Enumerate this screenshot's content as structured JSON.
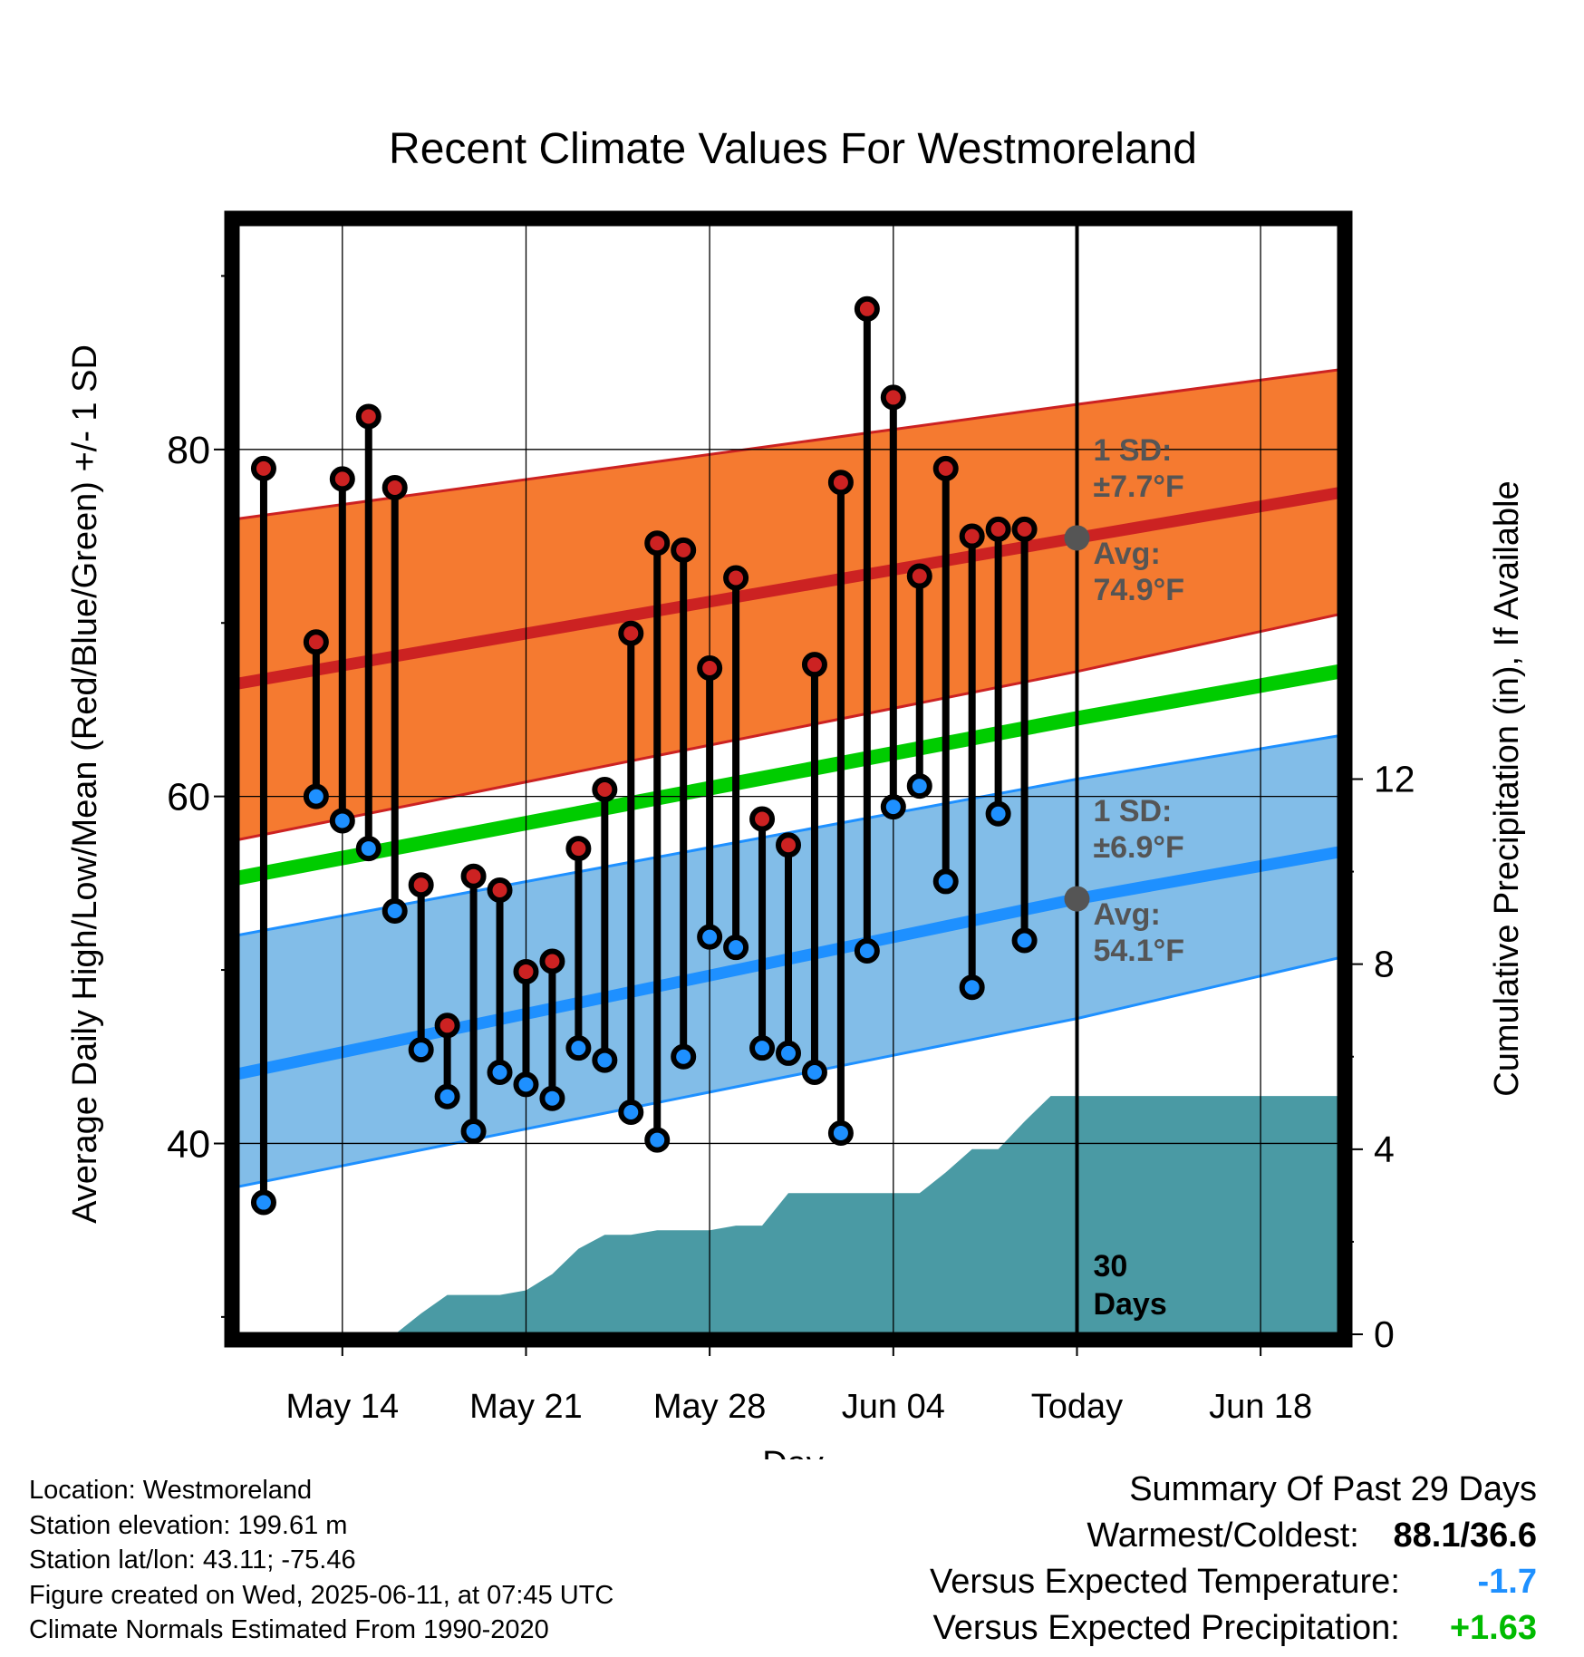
{
  "chart_data": {
    "type": "line",
    "title": "Recent Climate Values For Westmoreland",
    "xlabel": "Day",
    "ylabel": "Average Daily High/Low/Mean (Red/Blue/Green) +/- 1 SD",
    "y2label": "Cumulative Precipitation (in), If Available",
    "ylim": [
      29,
      93
    ],
    "yticks": [
      40,
      60,
      80
    ],
    "y2lim": [
      0,
      24
    ],
    "y2ticks": [
      0,
      4,
      8,
      12
    ],
    "xlim": [
      "2025-05-10",
      "2025-06-21"
    ],
    "xticks": [
      {
        "date": "2025-05-14",
        "label": "May 14"
      },
      {
        "date": "2025-05-21",
        "label": "May 21"
      },
      {
        "date": "2025-05-28",
        "label": "May 28"
      },
      {
        "date": "2025-06-04",
        "label": "Jun 04"
      },
      {
        "date": "2025-06-11",
        "label": "Today"
      },
      {
        "date": "2025-06-18",
        "label": "Jun 18"
      }
    ],
    "grid": true,
    "today": "2025-06-11",
    "normals": {
      "dates": [
        "2025-05-10",
        "2025-06-11",
        "2025-06-21"
      ],
      "high_mean": [
        66.5,
        74.9,
        77.5
      ],
      "high_plus_sd": [
        76.0,
        82.6,
        84.6
      ],
      "high_minus_sd": [
        57.5,
        67.2,
        70.5
      ],
      "low_mean": [
        44.0,
        54.1,
        56.8
      ],
      "low_plus_sd": [
        52.0,
        61.0,
        63.5
      ],
      "low_minus_sd": [
        37.5,
        47.2,
        50.7
      ],
      "daily_mean": [
        55.3,
        64.5,
        67.2
      ]
    },
    "observations": {
      "dates": [
        "2025-05-11",
        "2025-05-13",
        "2025-05-14",
        "2025-05-15",
        "2025-05-16",
        "2025-05-17",
        "2025-05-18",
        "2025-05-19",
        "2025-05-20",
        "2025-05-21",
        "2025-05-22",
        "2025-05-23",
        "2025-05-24",
        "2025-05-25",
        "2025-05-26",
        "2025-05-27",
        "2025-05-28",
        "2025-05-29",
        "2025-05-30",
        "2025-05-31",
        "2025-06-01",
        "2025-06-02",
        "2025-06-03",
        "2025-06-04",
        "2025-06-05",
        "2025-06-06",
        "2025-06-07",
        "2025-06-08",
        "2025-06-09",
        "2025-06-10"
      ],
      "highs": [
        78.9,
        68.9,
        78.3,
        81.9,
        77.8,
        54.9,
        46.8,
        55.4,
        54.6,
        49.9,
        50.5,
        57.0,
        60.4,
        69.4,
        74.6,
        74.2,
        67.4,
        72.6,
        58.7,
        57.2,
        67.6,
        78.1,
        88.1,
        83.0,
        72.7,
        78.9,
        75.0,
        75.4,
        75.4,
        null
      ],
      "lows": [
        36.6,
        60.0,
        58.6,
        57.0,
        53.4,
        45.4,
        42.7,
        40.7,
        44.1,
        43.4,
        42.6,
        45.5,
        44.8,
        41.8,
        40.2,
        45.0,
        51.9,
        51.3,
        45.5,
        45.2,
        44.1,
        40.6,
        51.1,
        59.4,
        60.6,
        55.1,
        49.0,
        59.0,
        51.7,
        null
      ]
    },
    "precip_cumulative": {
      "dates": [
        "2025-05-14",
        "2025-05-15",
        "2025-05-16",
        "2025-05-17",
        "2025-05-18",
        "2025-05-19",
        "2025-05-20",
        "2025-05-21",
        "2025-05-22",
        "2025-05-23",
        "2025-05-24",
        "2025-05-25",
        "2025-05-26",
        "2025-05-27",
        "2025-05-28",
        "2025-05-29",
        "2025-05-30",
        "2025-05-31",
        "2025-06-01",
        "2025-06-02",
        "2025-06-03",
        "2025-06-04",
        "2025-06-05",
        "2025-06-06",
        "2025-06-07",
        "2025-06-08",
        "2025-06-09",
        "2025-06-10",
        "2025-06-11",
        "2025-06-21"
      ],
      "values": [
        0.0,
        0.0,
        0.0,
        0.45,
        0.85,
        0.85,
        0.85,
        0.95,
        1.3,
        1.85,
        2.15,
        2.15,
        2.25,
        2.25,
        2.25,
        2.35,
        2.35,
        3.05,
        3.05,
        3.05,
        3.05,
        3.05,
        3.05,
        3.5,
        4.0,
        4.0,
        4.6,
        5.15,
        5.15,
        5.15
      ]
    },
    "annotations": {
      "high_sd_label": "1 SD:",
      "high_sd_value": "±7.7°F",
      "high_avg_label": "Avg:",
      "high_avg_value": "74.9°F",
      "low_sd_label": "1 SD:",
      "low_sd_value": "±6.9°F",
      "low_avg_label": "Avg:",
      "low_avg_value": "54.1°F",
      "window_count": "30",
      "window_unit": "Days"
    },
    "colors": {
      "high_band": "#f57a30",
      "high_line": "#cc2222",
      "low_band": "#82bde8",
      "low_line": "#1e90ff",
      "mean_line": "#00cc00",
      "precip": "#4a9aa4",
      "high_dot": "#cc2222",
      "low_dot": "#1e90ff",
      "annotation": "#555555"
    }
  },
  "footer": {
    "location": "Location: Westmoreland",
    "elevation": "Station elevation: 199.61 m",
    "latlon": "Station lat/lon: 43.11; -75.46",
    "created": "Figure created on Wed, 2025-06-11, at 07:45 UTC",
    "normals": "Climate Normals Estimated From 1990-2020"
  },
  "summary": {
    "title": "Summary Of Past 29 Days",
    "warm_cold_label": "Warmest/Coldest:",
    "warm_cold_value": "88.1/36.6",
    "temp_label": "Versus Expected Temperature:",
    "temp_value": "-1.7",
    "precip_label": "Versus Expected Precipitation:",
    "precip_value": "+1.63"
  }
}
